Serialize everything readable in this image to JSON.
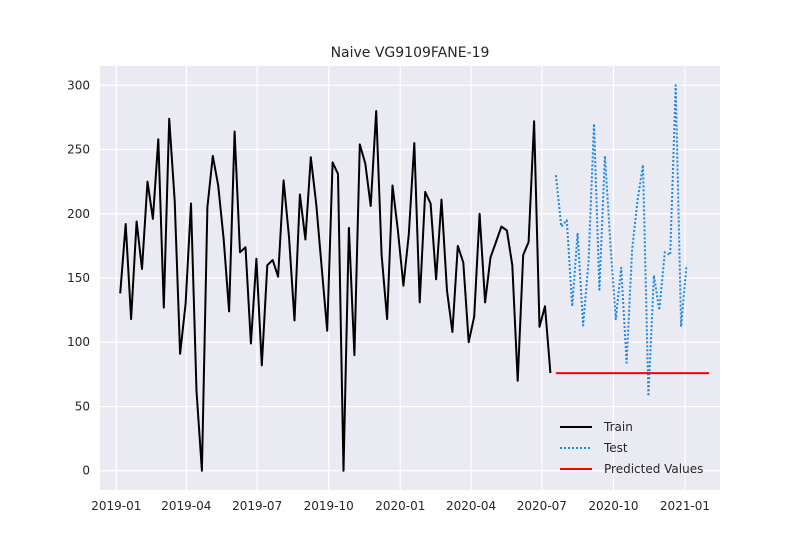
{
  "chart_data": {
    "type": "line",
    "title": "Naive VG9109FANE-19",
    "xlabel": "",
    "ylabel": "",
    "x_ticks": [
      "2019-01",
      "2019-04",
      "2019-07",
      "2019-10",
      "2020-01",
      "2020-04",
      "2020-07",
      "2020-10",
      "2021-01"
    ],
    "y_ticks": [
      0,
      50,
      100,
      150,
      200,
      250,
      300
    ],
    "ylim": [
      -15,
      315
    ],
    "xlim": [
      "2018-12-11",
      "2021-02-15"
    ],
    "grid": true,
    "legend_position": "lower-right",
    "colors": {
      "background": "#eaeaf2",
      "grid": "#ffffff",
      "train": "#000000",
      "test": "#1e88e5",
      "predicted": "#ff0000"
    },
    "series": [
      {
        "name": "Train",
        "style": "solid",
        "x": [
          "2019-01-06",
          "2019-01-13",
          "2019-01-20",
          "2019-01-27",
          "2019-02-03",
          "2019-02-10",
          "2019-02-17",
          "2019-02-24",
          "2019-03-03",
          "2019-03-10",
          "2019-03-17",
          "2019-03-24",
          "2019-03-31",
          "2019-04-07",
          "2019-04-14",
          "2019-04-21",
          "2019-04-28",
          "2019-05-05",
          "2019-05-12",
          "2019-05-19",
          "2019-05-26",
          "2019-06-02",
          "2019-06-09",
          "2019-06-16",
          "2019-06-23",
          "2019-06-30",
          "2019-07-07",
          "2019-07-14",
          "2019-07-21",
          "2019-07-28",
          "2019-08-04",
          "2019-08-11",
          "2019-08-18",
          "2019-08-25",
          "2019-09-01",
          "2019-09-08",
          "2019-09-15",
          "2019-09-22",
          "2019-09-29",
          "2019-10-06",
          "2019-10-13",
          "2019-10-20",
          "2019-10-27",
          "2019-11-03",
          "2019-11-10",
          "2019-11-17",
          "2019-11-24",
          "2019-12-01",
          "2019-12-08",
          "2019-12-15",
          "2019-12-22",
          "2019-12-29",
          "2020-01-05",
          "2020-01-12",
          "2020-01-19",
          "2020-01-26",
          "2020-02-02",
          "2020-02-09",
          "2020-02-16",
          "2020-02-23",
          "2020-03-01",
          "2020-03-08",
          "2020-03-15",
          "2020-03-22",
          "2020-03-29",
          "2020-04-05",
          "2020-04-12",
          "2020-04-19",
          "2020-04-26",
          "2020-05-03",
          "2020-05-10",
          "2020-05-17",
          "2020-05-24",
          "2020-05-31",
          "2020-06-07",
          "2020-06-14",
          "2020-06-21",
          "2020-06-28",
          "2020-07-05",
          "2020-07-12"
        ],
        "values": [
          138,
          192,
          118,
          194,
          157,
          225,
          196,
          258,
          127,
          274,
          210,
          91,
          130,
          208,
          62,
          0,
          205,
          245,
          222,
          180,
          124,
          264,
          170,
          174,
          99,
          165,
          82,
          160,
          164,
          151,
          226,
          182,
          117,
          215,
          180,
          244,
          207,
          158,
          109,
          240,
          231,
          0,
          189,
          90,
          254,
          239,
          206,
          280,
          168,
          118,
          222,
          187,
          144,
          184,
          255,
          131,
          217,
          208,
          149,
          211,
          140,
          108,
          175,
          162,
          100,
          120,
          200,
          131,
          166,
          178,
          190,
          187,
          160,
          70,
          168,
          178,
          272,
          112,
          128,
          76
        ]
      },
      {
        "name": "Test",
        "style": "dotted",
        "x": [
          "2020-07-19",
          "2020-07-26",
          "2020-08-02",
          "2020-08-09",
          "2020-08-16",
          "2020-08-23",
          "2020-08-30",
          "2020-09-06",
          "2020-09-13",
          "2020-09-20",
          "2020-09-27",
          "2020-10-04",
          "2020-10-11",
          "2020-10-18",
          "2020-10-25",
          "2020-11-01",
          "2020-11-08",
          "2020-11-15",
          "2020-11-22",
          "2020-11-29",
          "2020-12-06",
          "2020-12-13",
          "2020-12-20",
          "2020-12-27",
          "2021-01-03"
        ],
        "values": [
          230,
          190,
          195,
          128,
          185,
          113,
          162,
          270,
          141,
          245,
          178,
          118,
          158,
          84,
          172,
          210,
          238,
          58,
          152,
          125,
          170,
          168,
          300,
          112,
          160
        ]
      },
      {
        "name": "Predicted Values",
        "style": "solid",
        "x": [
          "2020-07-19",
          "2021-02-01"
        ],
        "values": [
          76,
          76
        ]
      }
    ]
  }
}
